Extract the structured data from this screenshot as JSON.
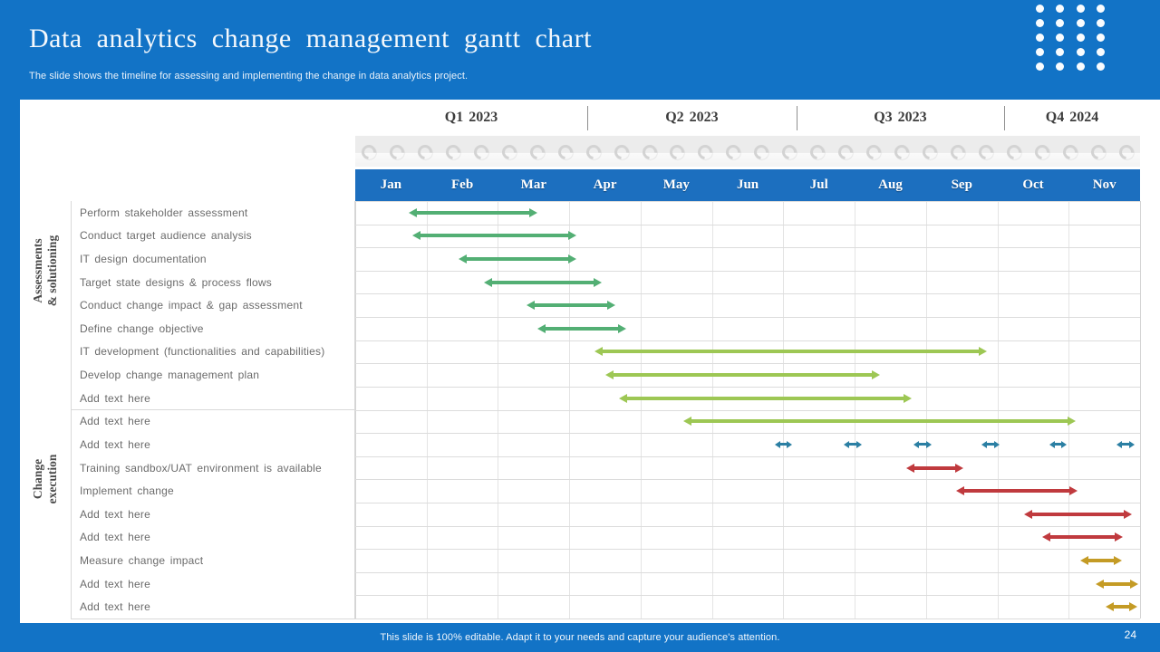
{
  "header": {
    "title": "Data analytics change management gantt chart",
    "subtitle": "The slide shows the timeline for assessing and implementing the change in data analytics project."
  },
  "footer": {
    "note": "This slide is 100% editable. Adapt it to your needs and capture your audience's attention.",
    "page_number": "24"
  },
  "colors": {
    "brand_blue": "#1273C6",
    "month_bar_blue": "#1C6FBF",
    "green": "#53AF74",
    "light_green": "#9DC754",
    "teal": "#2B7FA3",
    "red": "#C03A3E",
    "gold": "#C49B25"
  },
  "decor": {
    "dot_count": 20,
    "ring_count": 28
  },
  "chart_data": {
    "type": "bar",
    "subtype": "gantt",
    "title": "Data analytics change management gantt chart",
    "quarters": [
      {
        "label": "Q1 2023",
        "width_frac": 0.2956
      },
      {
        "label": "Q2 2023",
        "width_frac": 0.2667
      },
      {
        "label": "Q3 2023",
        "width_frac": 0.2645
      },
      {
        "label": "Q4 2024",
        "width_frac": 0.1732
      }
    ],
    "months": [
      "Jan",
      "Feb",
      "Mar",
      "Apr",
      "May",
      "Jun",
      "Jul",
      "Aug",
      "Sep",
      "Oct",
      "Nov"
    ],
    "scale_note": "task start/end are in month units: 0 = start of Jan, 11 = end of Nov",
    "groups": [
      {
        "label": "Assessments & solutioning",
        "label_lines": [
          "Assessments",
          "& solutioning"
        ],
        "row_start": 0,
        "row_count": 6
      },
      {
        "label": "Change execution",
        "label_lines": [
          "Change",
          "execution"
        ],
        "row_start": 6,
        "row_count": 12
      }
    ],
    "tasks": [
      {
        "name": "Perform stakeholder assessment",
        "color": "green",
        "style": "arrow",
        "start": 0.75,
        "end": 2.55
      },
      {
        "name": "Conduct target audience analysis",
        "color": "green",
        "style": "arrow",
        "start": 0.8,
        "end": 3.1
      },
      {
        "name": "IT design documentation",
        "color": "green",
        "style": "arrow",
        "start": 1.45,
        "end": 3.1
      },
      {
        "name": "Target state designs & process flows",
        "color": "green",
        "style": "arrow",
        "start": 1.8,
        "end": 3.45
      },
      {
        "name": "Conduct change impact & gap assessment",
        "color": "green",
        "style": "arrow",
        "start": 2.4,
        "end": 3.65
      },
      {
        "name": "Define change objective",
        "color": "green",
        "style": "arrow",
        "start": 2.55,
        "end": 3.8
      },
      {
        "name": "IT development (functionalities and capabilities)",
        "color": "light_green",
        "style": "arrow",
        "start": 3.35,
        "end": 8.85
      },
      {
        "name": "Develop change management plan",
        "color": "light_green",
        "style": "arrow",
        "start": 3.5,
        "end": 7.35
      },
      {
        "name": "Add text here",
        "color": "light_green",
        "style": "arrow",
        "start": 3.7,
        "end": 7.8
      },
      {
        "name": "Add text here",
        "color": "light_green",
        "style": "arrow",
        "start": 4.6,
        "end": 10.1
      },
      {
        "name": "Add text here",
        "color": "teal",
        "style": "dash",
        "centers": [
          6.0,
          6.97,
          7.95,
          8.9,
          9.85,
          10.8
        ],
        "dash_width": 0.25
      },
      {
        "name": "Training sandbox/UAT environment is available",
        "color": "red",
        "style": "arrow",
        "start": 7.72,
        "end": 8.52
      },
      {
        "name": "Implement change",
        "color": "red",
        "style": "arrow",
        "start": 8.42,
        "end": 10.12
      },
      {
        "name": "Add text here",
        "color": "red",
        "style": "arrow",
        "start": 9.38,
        "end": 10.88
      },
      {
        "name": "Add text here",
        "color": "red",
        "style": "arrow",
        "start": 9.63,
        "end": 10.76
      },
      {
        "name": "Measure change impact",
        "color": "gold",
        "style": "arrow",
        "start": 10.16,
        "end": 10.75
      },
      {
        "name": "Add text here",
        "color": "gold",
        "style": "arrow",
        "start": 10.38,
        "end": 10.97
      },
      {
        "name": "Add text here",
        "color": "gold",
        "style": "arrow",
        "start": 10.52,
        "end": 10.96
      }
    ]
  }
}
